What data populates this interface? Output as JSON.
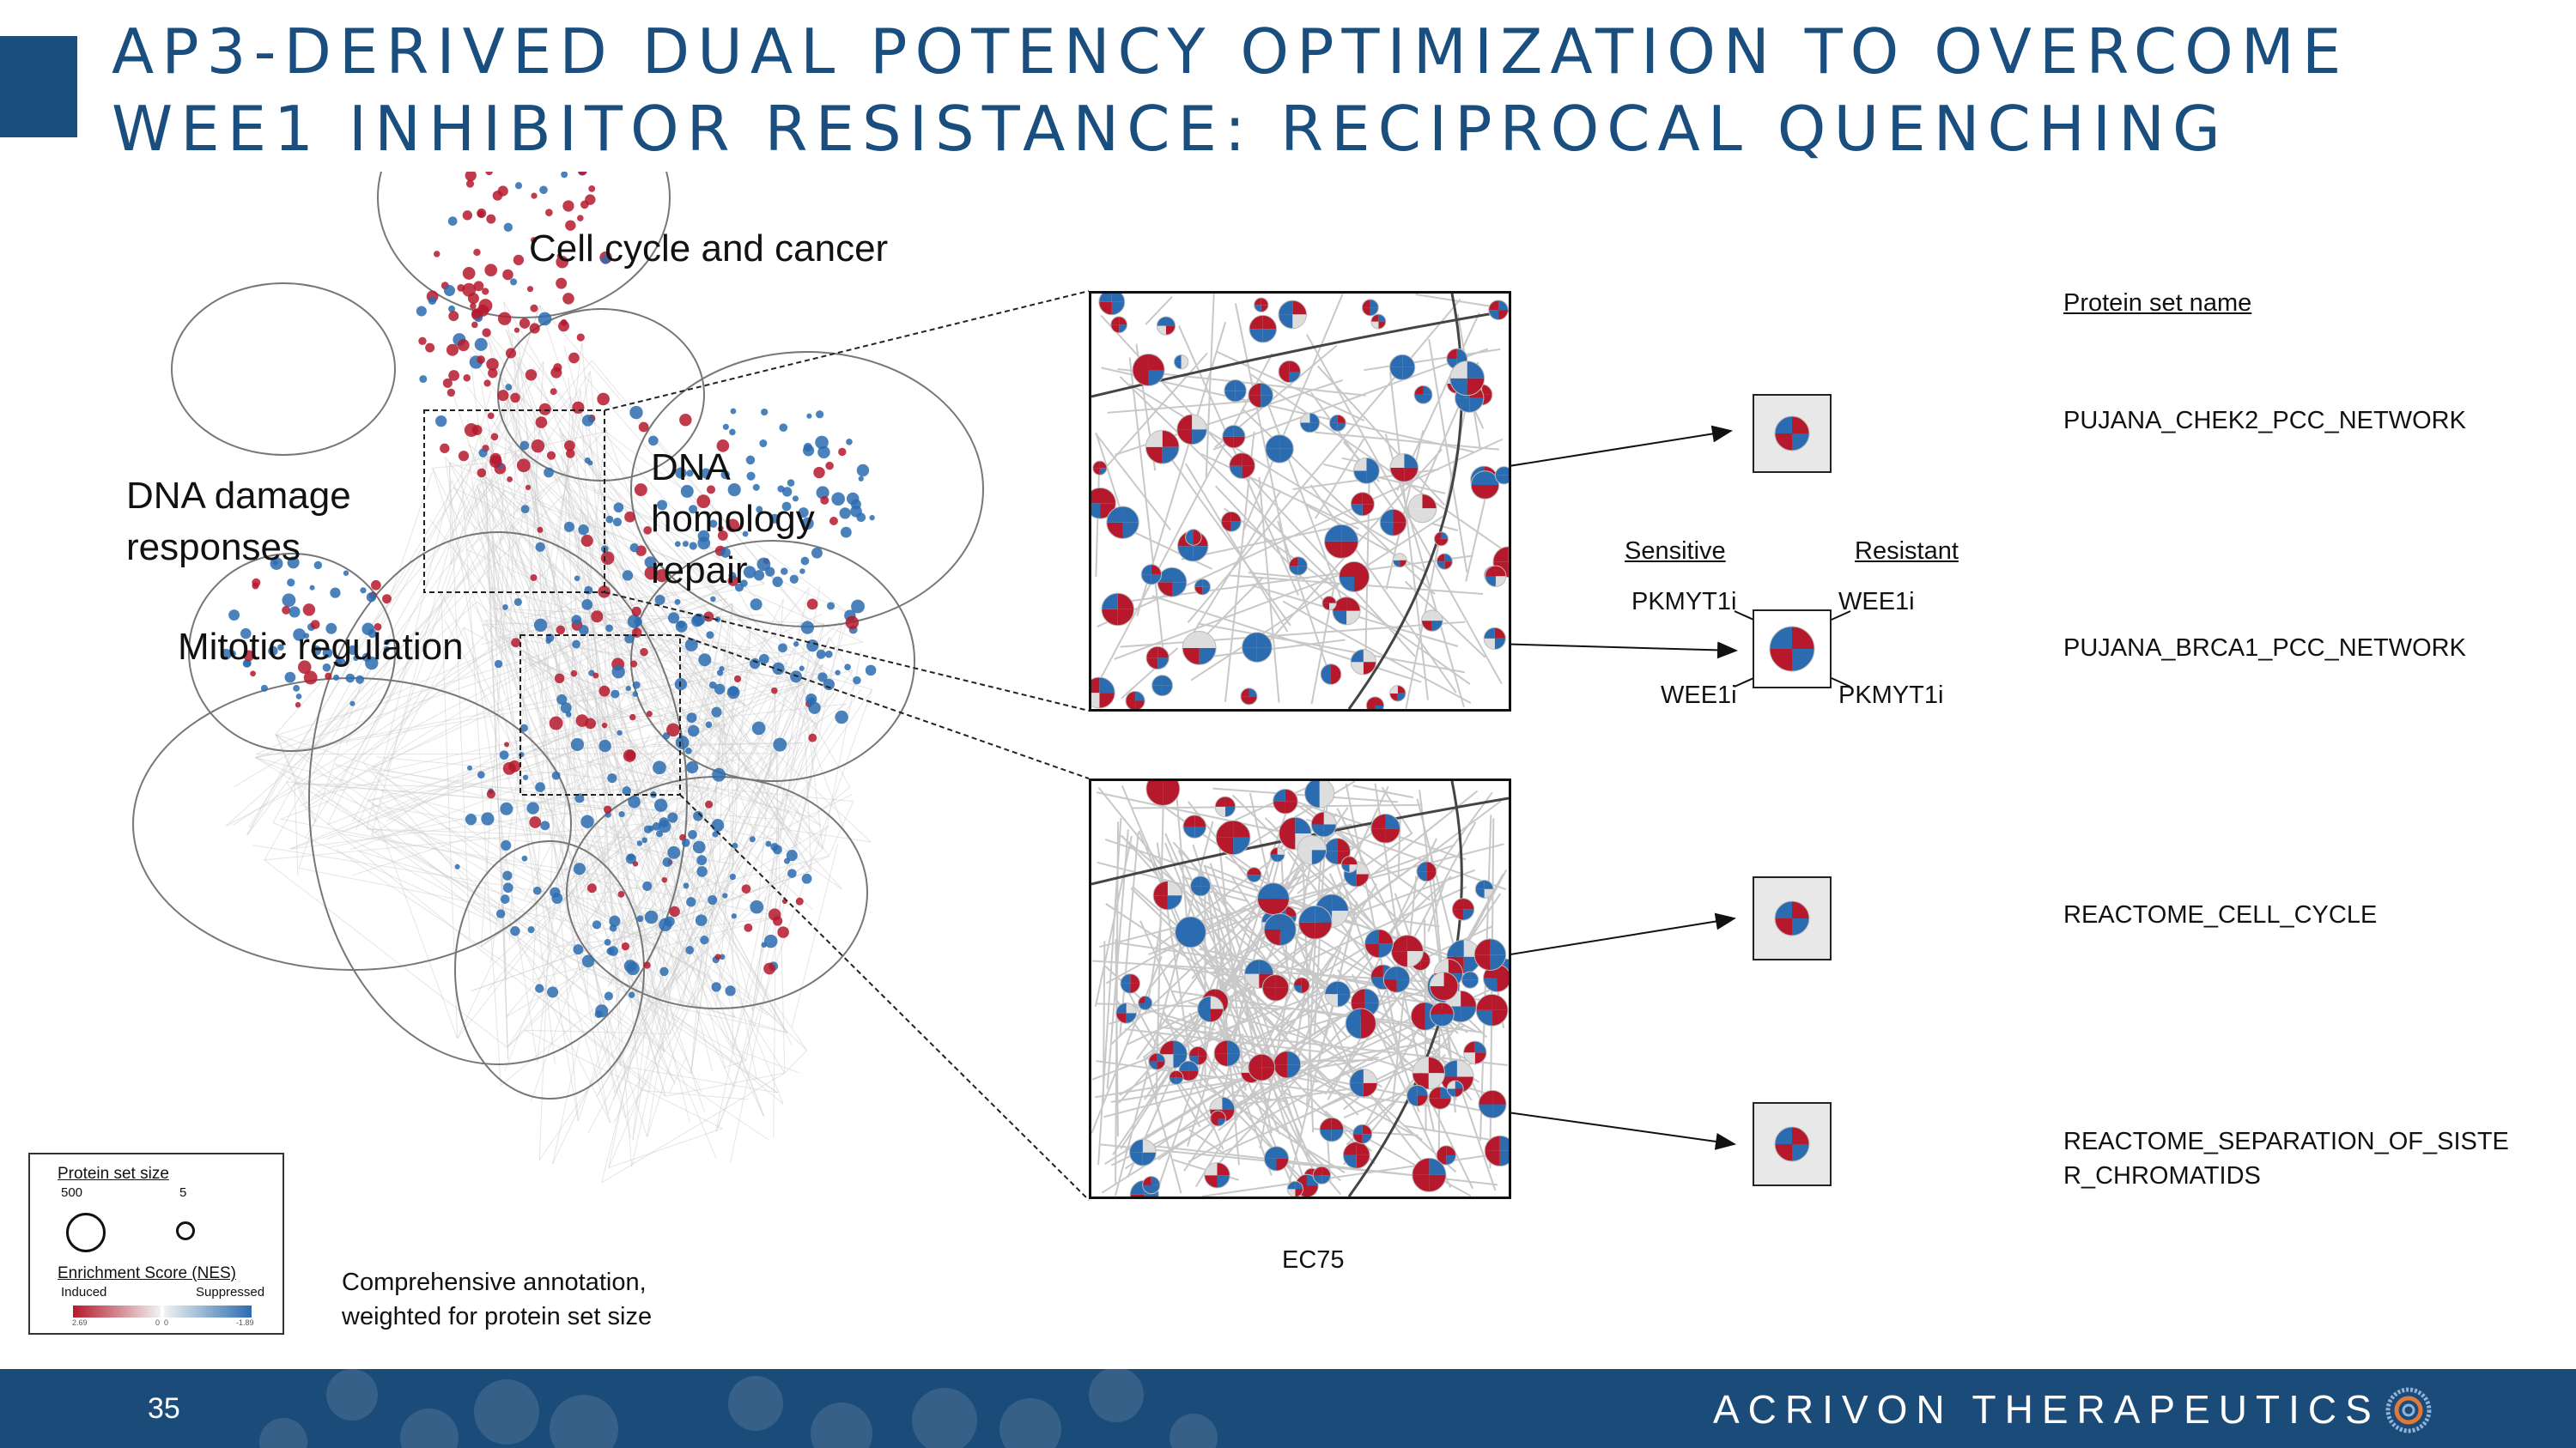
{
  "title": {
    "line1": "AP3-DERIVED DUAL POTENCY OPTIMIZATION TO OVERCOME",
    "line2": "WEE1 INHIBITOR RESISTANCE: RECIPROCAL QUENCHING"
  },
  "network": {
    "clusters": {
      "cell_cycle": "Cell cycle and cancer",
      "dna_damage": [
        "DNA damage",
        "responses"
      ],
      "dna_homology": [
        "DNA",
        "homology",
        "repair"
      ],
      "mitotic": "Mitotic regulation"
    },
    "caption": [
      "Comprehensive annotation,",
      "weighted for protein set size"
    ]
  },
  "legend": {
    "size_title": "Protein set size",
    "size_large": "500",
    "size_small": "5",
    "nes_title": "Enrichment Score (NES)",
    "induced": "Induced",
    "suppressed": "Suppressed",
    "ticks": [
      "2.69",
      "0",
      "0",
      "-1.89"
    ],
    "colors": {
      "induced": "#b5192b",
      "neutral": "#f2f2f2",
      "suppressed": "#2b6cb0"
    }
  },
  "zoom_caption": "EC75",
  "pie_legend": {
    "sensitive": "Sensitive",
    "resistant": "Resistant",
    "top_left": "PKMYT1i",
    "top_right": "WEE1i",
    "bottom_left": "WEE1i",
    "bottom_right": "PKMYT1i"
  },
  "protein_sets": {
    "header": "Protein set name",
    "items": [
      "PUJANA_CHEK2_PCC_NETWORK",
      "PUJANA_BRCA1_PCC_NETWORK",
      "REACTOME_CELL_CYCLE",
      "REACTOME_SEPARATION_OF_SISTE",
      "R_CHROMATIDS"
    ]
  },
  "footer": {
    "page_number": "35",
    "company": "ACRIVON THERAPEUTICS",
    "color": "#1b4b78"
  }
}
